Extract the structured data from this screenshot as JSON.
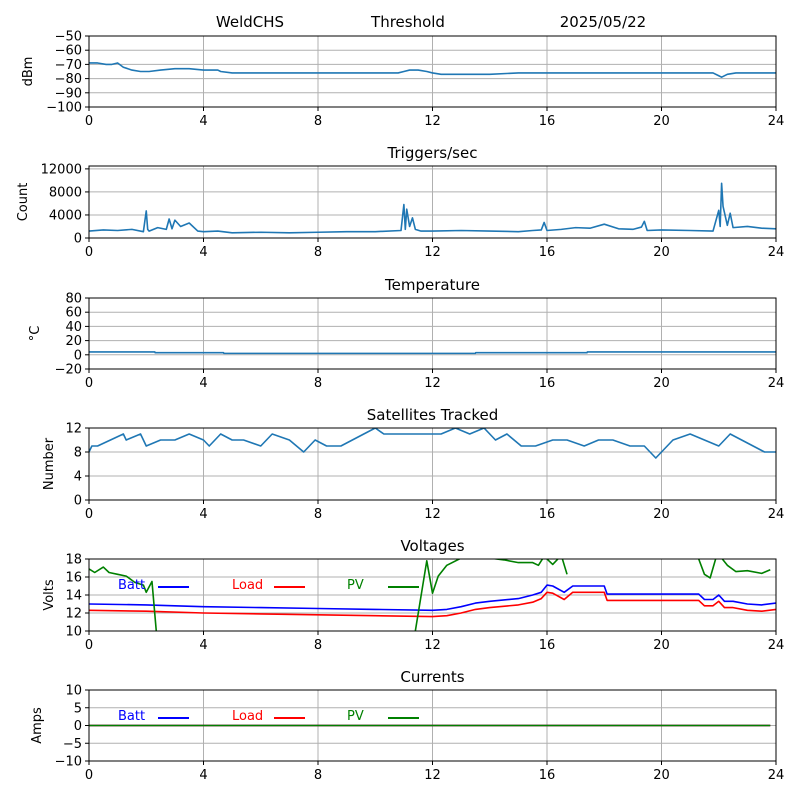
{
  "header": {
    "left": "WeldCHS",
    "middle": "Threshold",
    "right": "2025/05/22"
  },
  "colors": {
    "default": "#1f77b4",
    "batt": "#0000ff",
    "load": "#ff0000",
    "pv": "#008000"
  },
  "chart_data": [
    {
      "id": "signal",
      "type": "line",
      "title": "",
      "ylabel": "dBm",
      "xlim": [
        0,
        24
      ],
      "ylim": [
        -100,
        -50
      ],
      "xticks": [
        0,
        4,
        8,
        12,
        16,
        20,
        24
      ],
      "yticks": [
        -100,
        -90,
        -80,
        -70,
        -60,
        -50
      ],
      "grid": true,
      "series": [
        {
          "color": "#1f77b4",
          "x": [
            0,
            0.3,
            0.6,
            0.8,
            1.0,
            1.2,
            1.5,
            1.8,
            2.1,
            2.5,
            3.0,
            3.5,
            4.0,
            4.5,
            4.6,
            5,
            6,
            7,
            8,
            9,
            10,
            10.8,
            11.0,
            11.2,
            11.5,
            11.8,
            12.0,
            12.3,
            13,
            14,
            15,
            15.5,
            16,
            17,
            18,
            19,
            20,
            21,
            21.8,
            22.0,
            22.1,
            22.3,
            22.6,
            23,
            23.5,
            24
          ],
          "y": [
            -69,
            -69,
            -70,
            -70,
            -69,
            -72,
            -74,
            -75,
            -75,
            -74,
            -73,
            -73,
            -74,
            -74,
            -75,
            -76,
            -76,
            -76,
            -76,
            -76,
            -76,
            -76,
            -75,
            -74,
            -74,
            -75,
            -76,
            -77,
            -77,
            -77,
            -76,
            -76,
            -76,
            -76,
            -76,
            -76,
            -76,
            -76,
            -76,
            -78,
            -79,
            -77,
            -76,
            -76,
            -76,
            -76
          ]
        }
      ]
    },
    {
      "id": "triggers",
      "type": "line",
      "title": "Triggers/sec",
      "ylabel": "Count",
      "xlim": [
        0,
        24
      ],
      "ylim": [
        0,
        12500
      ],
      "xticks": [
        0,
        4,
        8,
        12,
        16,
        20,
        24
      ],
      "yticks": [
        0,
        4000,
        8000,
        12000
      ],
      "grid": true,
      "series": [
        {
          "color": "#1f77b4",
          "x": [
            0,
            0.5,
            1.0,
            1.5,
            1.9,
            2.0,
            2.05,
            2.1,
            2.4,
            2.7,
            2.8,
            2.9,
            3.0,
            3.2,
            3.5,
            3.8,
            4.0,
            4.5,
            5,
            6,
            7,
            8,
            9,
            10,
            10.9,
            11.0,
            11.05,
            11.1,
            11.2,
            11.3,
            11.4,
            11.6,
            12,
            13,
            14,
            15,
            15.5,
            15.8,
            15.9,
            16,
            16.5,
            17,
            17.5,
            18,
            18.5,
            19,
            19.3,
            19.4,
            19.5,
            20,
            21,
            21.8,
            22.0,
            22.05,
            22.1,
            22.15,
            22.3,
            22.4,
            22.5,
            23,
            23.5,
            24
          ],
          "y": [
            1200,
            1400,
            1300,
            1500,
            1100,
            4700,
            1500,
            1200,
            1800,
            1500,
            3300,
            1600,
            3100,
            2000,
            2600,
            1200,
            1100,
            1200,
            900,
            1000,
            900,
            1000,
            1100,
            1100,
            1300,
            5800,
            1500,
            5000,
            2000,
            3500,
            1500,
            1200,
            1200,
            1300,
            1200,
            1100,
            1300,
            1400,
            2700,
            1300,
            1500,
            1800,
            1700,
            2400,
            1600,
            1500,
            1900,
            2900,
            1300,
            1400,
            1300,
            1200,
            4800,
            2000,
            9500,
            5500,
            2200,
            4300,
            1800,
            2000,
            1700,
            1600
          ]
        }
      ]
    },
    {
      "id": "temperature",
      "type": "line",
      "title": "Temperature",
      "ylabel": "°C",
      "xlim": [
        0,
        24
      ],
      "ylim": [
        -20,
        80
      ],
      "xticks": [
        0,
        4,
        8,
        12,
        16,
        20,
        24
      ],
      "yticks": [
        -20,
        0,
        20,
        40,
        60,
        80
      ],
      "grid": true,
      "series": [
        {
          "color": "#1f77b4",
          "x": [
            0,
            2.3,
            2.31,
            4.7,
            4.71,
            13.5,
            13.51,
            17.4,
            17.41,
            24
          ],
          "y": [
            4,
            4,
            3,
            3,
            2,
            2,
            3,
            3,
            4,
            4
          ]
        }
      ]
    },
    {
      "id": "satellites",
      "type": "line",
      "title": "Satellites Tracked",
      "ylabel": "Number",
      "xlim": [
        0,
        24
      ],
      "ylim": [
        0,
        12
      ],
      "xticks": [
        0,
        4,
        8,
        12,
        16,
        20,
        24
      ],
      "yticks": [
        0,
        4,
        8,
        12
      ],
      "grid": true,
      "series": [
        {
          "color": "#1f77b4",
          "x": [
            0,
            0.1,
            0.3,
            1.2,
            1.3,
            1.8,
            2.0,
            2.5,
            3.0,
            3.5,
            4.0,
            4.2,
            4.6,
            5.0,
            5.4,
            6.0,
            6.4,
            7.0,
            7.5,
            7.9,
            8.3,
            8.8,
            9.2,
            9.6,
            10.0,
            10.3,
            10.8,
            11.3,
            11.8,
            12.3,
            12.8,
            13.3,
            13.8,
            14.2,
            14.6,
            15.1,
            15.6,
            16.2,
            16.7,
            17.3,
            17.8,
            18.3,
            18.9,
            19.4,
            19.8,
            20.4,
            21.0,
            21.5,
            22.0,
            22.4,
            22.8,
            23.2,
            23.6,
            24
          ],
          "y": [
            8,
            9,
            9,
            11,
            10,
            11,
            9,
            10,
            10,
            11,
            10,
            9,
            11,
            10,
            10,
            9,
            11,
            10,
            8,
            10,
            9,
            9,
            10,
            11,
            12,
            11,
            11,
            11,
            11,
            11,
            12,
            11,
            12,
            10,
            11,
            9,
            9,
            10,
            10,
            9,
            10,
            10,
            9,
            9,
            7,
            10,
            11,
            10,
            9,
            11,
            10,
            9,
            8,
            8
          ]
        }
      ]
    },
    {
      "id": "voltages",
      "type": "line",
      "title": "Voltages",
      "ylabel": "Volts",
      "xlim": [
        0,
        24
      ],
      "ylim": [
        10,
        18
      ],
      "xticks": [
        0,
        4,
        8,
        12,
        16,
        20,
        24
      ],
      "yticks": [
        10,
        12,
        14,
        16,
        18
      ],
      "grid": true,
      "legend": [
        "Batt",
        "Load",
        "PV"
      ],
      "series": [
        {
          "name": "Batt",
          "color": "#0000ff",
          "x": [
            0,
            2,
            4,
            6,
            8,
            10,
            12,
            12.5,
            13,
            13.5,
            14,
            15,
            15.5,
            15.8,
            16,
            16.2,
            16.6,
            16.9,
            17.5,
            18,
            18.1,
            19,
            20,
            21,
            21.3,
            21.5,
            21.8,
            22,
            22.2,
            22.5,
            23,
            23.5,
            24
          ],
          "y": [
            13.0,
            12.9,
            12.7,
            12.6,
            12.5,
            12.4,
            12.3,
            12.4,
            12.7,
            13.1,
            13.3,
            13.6,
            14.0,
            14.3,
            15.1,
            15.0,
            14.3,
            15.0,
            15.0,
            15.0,
            14.1,
            14.1,
            14.1,
            14.1,
            14.1,
            13.5,
            13.5,
            14.0,
            13.3,
            13.3,
            13.0,
            12.9,
            13.1
          ]
        },
        {
          "name": "Load",
          "color": "#ff0000",
          "x": [
            0,
            2,
            4,
            6,
            8,
            10,
            12,
            12.5,
            13,
            13.5,
            14,
            15,
            15.5,
            15.8,
            16,
            16.2,
            16.6,
            16.9,
            17.5,
            18,
            18.1,
            19,
            20,
            21,
            21.3,
            21.5,
            21.8,
            22,
            22.2,
            22.5,
            23,
            23.5,
            24
          ],
          "y": [
            12.3,
            12.2,
            12.0,
            11.9,
            11.8,
            11.7,
            11.6,
            11.7,
            12.0,
            12.4,
            12.6,
            12.9,
            13.2,
            13.6,
            14.3,
            14.2,
            13.5,
            14.3,
            14.3,
            14.3,
            13.4,
            13.4,
            13.4,
            13.4,
            13.4,
            12.8,
            12.8,
            13.3,
            12.6,
            12.6,
            12.3,
            12.2,
            12.4
          ]
        },
        {
          "name": "PV",
          "color": "#008000",
          "segments": [
            {
              "x": [
                0,
                0.2,
                0.5,
                0.7,
                1.0,
                1.3,
                1.6,
                1.9,
                2.0,
                2.2,
                2.35
              ],
              "y": [
                16.9,
                16.5,
                17.1,
                16.5,
                16.3,
                16.1,
                15.4,
                15.1,
                14.3,
                15.5,
                10
              ]
            },
            {
              "x": [
                11.4,
                11.8,
                12.0,
                12.2,
                12.5,
                13,
                13.5,
                14,
                14.5,
                15,
                15.5,
                15.7,
                15.9,
                16.2,
                16.5,
                16.7
              ],
              "y": [
                10,
                17.8,
                14.2,
                16.1,
                17.3,
                18.1,
                18.3,
                18.1,
                17.9,
                17.6,
                17.6,
                17.3,
                18.3,
                17.4,
                18.4,
                16.3
              ]
            },
            {
              "x": [
                21.3,
                21.5,
                21.7,
                21.9,
                22.1,
                22.3,
                22.6,
                23,
                23.5,
                23.8
              ],
              "y": [
                18.0,
                16.3,
                15.9,
                18.1,
                18.1,
                17.3,
                16.6,
                16.7,
                16.4,
                16.8
              ]
            }
          ]
        }
      ]
    },
    {
      "id": "currents",
      "type": "line",
      "title": "Currents",
      "ylabel": "Amps",
      "xlim": [
        0,
        24
      ],
      "ylim": [
        -10,
        10
      ],
      "xticks": [
        0,
        4,
        8,
        12,
        16,
        20,
        24
      ],
      "yticks": [
        -10,
        -5,
        0,
        5,
        10
      ],
      "grid": true,
      "legend": [
        "Batt",
        "Load",
        "PV"
      ],
      "series": [
        {
          "name": "Batt",
          "color": "#0000ff",
          "x": [
            0,
            23.8
          ],
          "y": [
            0,
            0
          ]
        },
        {
          "name": "Load",
          "color": "#ff0000",
          "x": [
            0,
            23.8
          ],
          "y": [
            0,
            0
          ]
        },
        {
          "name": "PV",
          "color": "#008000",
          "x": [
            0,
            23.8
          ],
          "y": [
            0,
            0
          ]
        }
      ]
    }
  ]
}
